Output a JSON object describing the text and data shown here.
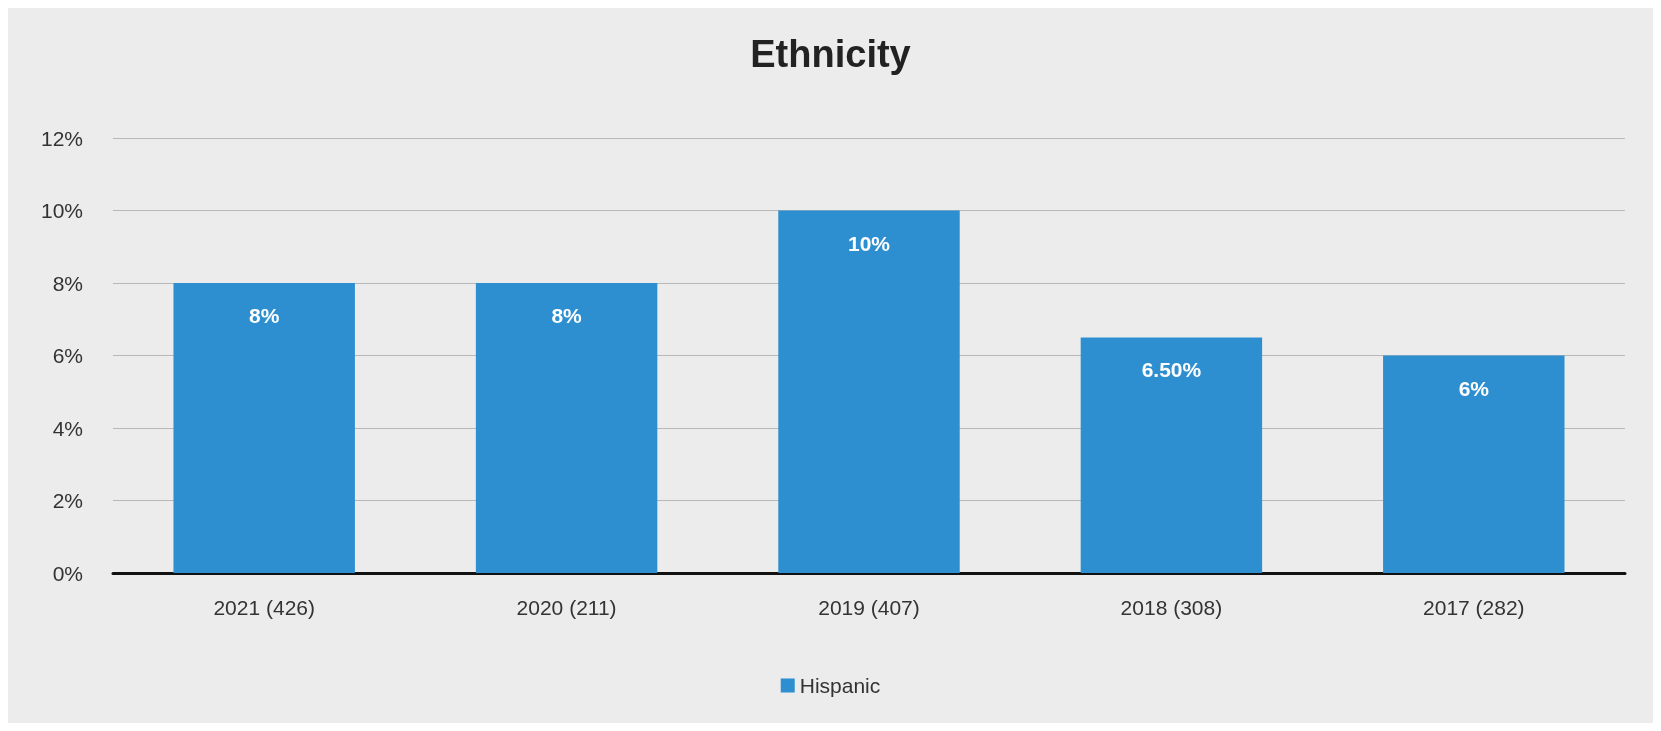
{
  "chart_data": {
    "type": "bar",
    "title": "Ethnicity",
    "categories": [
      "2021 (426)",
      "2020 (211)",
      "2019 (407)",
      "2018 (308)",
      "2017 (282)"
    ],
    "series": [
      {
        "name": "Hispanic",
        "color": "#2e8fd0",
        "values": [
          8,
          8,
          10,
          6.5,
          6
        ],
        "value_labels": [
          "8%",
          "8%",
          "10%",
          "6.50%",
          "6%"
        ]
      }
    ],
    "ylim": [
      0,
      12
    ],
    "yticks": [
      {
        "value": 0,
        "label": "0%"
      },
      {
        "value": 2,
        "label": "2%"
      },
      {
        "value": 4,
        "label": "4%"
      },
      {
        "value": 6,
        "label": "6%"
      },
      {
        "value": 8,
        "label": "8%"
      },
      {
        "value": 10,
        "label": "10%"
      },
      {
        "value": 12,
        "label": "12%"
      }
    ],
    "grid": "y",
    "legend": "bottom"
  }
}
